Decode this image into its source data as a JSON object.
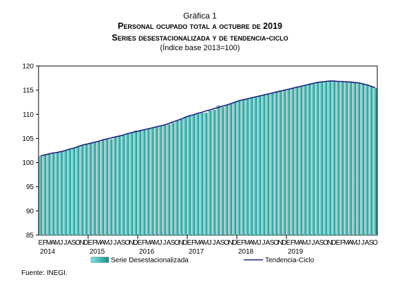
{
  "header": {
    "label": "Gráfica 1",
    "title": "Personal ocupado total a octubre de 2019",
    "subtitle": "Series desestacionalizada y de tendencia-ciclo",
    "unit": "(Índice base 2013=100)"
  },
  "source": "Fuente: INEGI.",
  "colors": {
    "bar_fill_light": "#7fe6de",
    "bar_fill_dark": "#1a8c8c",
    "bar_stroke": "#1f6f6f",
    "trend_line": "#1a237e",
    "plot_border": "#000000",
    "grid": "#000000"
  },
  "chart_data": {
    "type": "bar",
    "title": "Personal ocupado total a octubre de 2019",
    "subtitle": "Series desestacionalizada y de tendencia-ciclo",
    "ylim": [
      85,
      120
    ],
    "yticks": [
      85,
      90,
      95,
      100,
      105,
      110,
      115,
      120
    ],
    "grid": false,
    "legend_position": "bottom",
    "month_letters": [
      "E",
      "F",
      "M",
      "A",
      "M",
      "J",
      "J",
      "A",
      "S",
      "O",
      "N",
      "D"
    ],
    "years": [
      "2014",
      "2015",
      "2016",
      "2017",
      "2018",
      "2019"
    ],
    "series": [
      {
        "name": "Serie Desestacionalizada",
        "kind": "bar",
        "values": [
          101.3,
          101.5,
          101.8,
          101.9,
          102.1,
          102.3,
          102.5,
          102.7,
          102.9,
          103.3,
          103.6,
          103.9,
          104.0,
          104.2,
          104.4,
          104.6,
          104.9,
          104.8,
          105.3,
          105.5,
          105.7,
          105.9,
          106.2,
          106.6,
          106.5,
          106.8,
          107.0,
          107.2,
          107.3,
          107.5,
          107.7,
          107.9,
          108.2,
          108.6,
          109.0,
          109.4,
          109.7,
          109.9,
          110.1,
          110.2,
          110.3,
          110.7,
          110.9,
          111.8,
          111.5,
          111.9,
          112.2,
          112.5,
          112.8,
          113.0,
          113.2,
          113.4,
          113.6,
          113.8,
          114.0,
          114.1,
          114.3,
          114.6,
          114.8,
          115.0,
          115.2,
          115.4,
          115.6,
          115.8,
          116.0,
          116.2,
          116.4,
          116.5,
          116.6,
          116.7,
          116.9,
          116.8,
          116.8,
          116.7,
          116.6,
          116.6,
          116.5,
          116.4,
          116.3,
          116.1,
          115.7,
          115.4
        ]
      },
      {
        "name": "Tendencia-Ciclo",
        "kind": "line",
        "values": [
          101.4,
          101.6,
          101.8,
          102.0,
          102.1,
          102.3,
          102.5,
          102.8,
          103.0,
          103.3,
          103.6,
          103.8,
          104.0,
          104.2,
          104.4,
          104.7,
          104.9,
          105.1,
          105.3,
          105.5,
          105.7,
          106.0,
          106.2,
          106.4,
          106.6,
          106.8,
          107.0,
          107.2,
          107.4,
          107.6,
          107.8,
          108.1,
          108.4,
          108.7,
          109.0,
          109.4,
          109.7,
          109.9,
          110.2,
          110.4,
          110.7,
          110.9,
          111.2,
          111.4,
          111.7,
          111.9,
          112.2,
          112.5,
          112.8,
          113.0,
          113.2,
          113.4,
          113.6,
          113.8,
          114.0,
          114.2,
          114.4,
          114.6,
          114.8,
          115.0,
          115.2,
          115.4,
          115.6,
          115.8,
          116.0,
          116.2,
          116.4,
          116.6,
          116.7,
          116.8,
          116.9,
          116.9,
          116.8,
          116.8,
          116.7,
          116.7,
          116.6,
          116.5,
          116.3,
          116.1,
          115.8,
          115.5
        ]
      }
    ]
  }
}
